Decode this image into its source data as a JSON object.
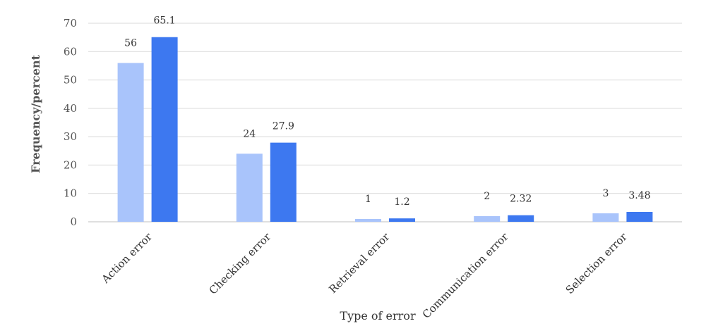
{
  "chart_data": {
    "type": "bar",
    "categories": [
      "Action error",
      "Checking error",
      "Retrieval error",
      "Communication error",
      "Selection error"
    ],
    "series": [
      {
        "values": [
          56,
          24,
          1,
          2,
          3
        ],
        "color": "#a9c4fb"
      },
      {
        "values": [
          65.1,
          27.9,
          1.2,
          2.32,
          3.48
        ],
        "color": "#3d78f0"
      }
    ],
    "value_labels": [
      [
        "56",
        "24",
        "1",
        "2",
        "3"
      ],
      [
        "65.1",
        "27.9",
        "1.2",
        "2.32",
        "3.48"
      ]
    ],
    "xlabel": "Type of error",
    "ylabel": "Frequency/percent",
    "ylim": [
      0,
      70
    ],
    "yticks": [
      0,
      10,
      20,
      30,
      40,
      50,
      60,
      70
    ],
    "grid": true,
    "legend": false
  }
}
